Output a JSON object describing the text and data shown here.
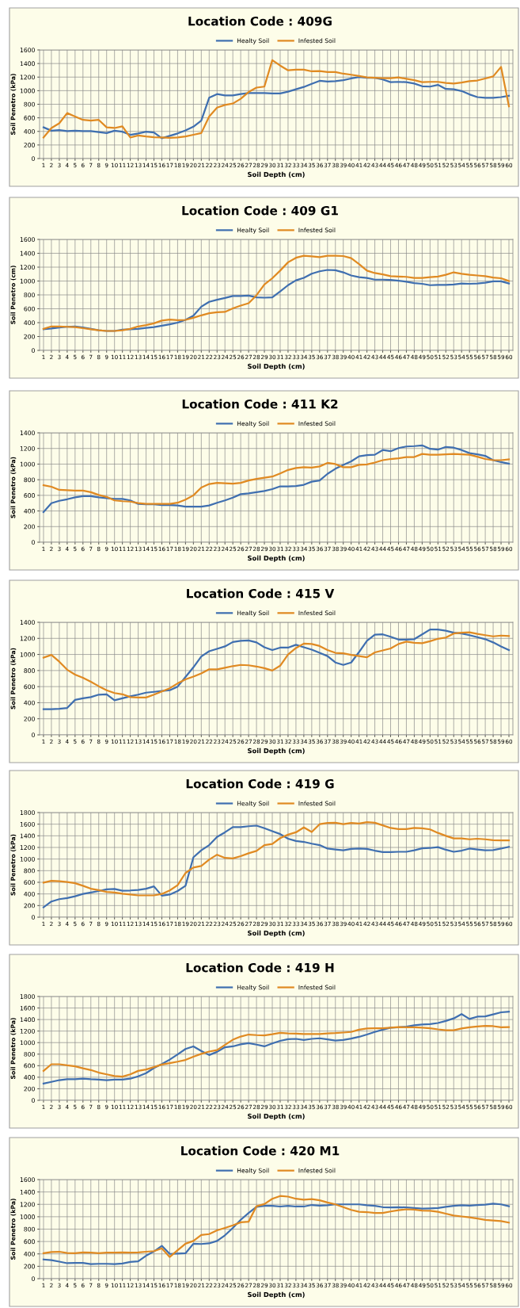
{
  "chart_data": [
    {
      "type": "line",
      "title": "Location Code : 409G",
      "xlabel": "Soil Depth (cm)",
      "ylabel": "Soil Penetro (kPa)",
      "categories": [
        "1",
        "2",
        "3",
        "4",
        "5",
        "6",
        "7",
        "8",
        "9",
        "10",
        "11",
        "12",
        "13",
        "14",
        "15",
        "16",
        "17",
        "18",
        "19",
        "20",
        "21",
        "22",
        "23",
        "24",
        "25",
        "26",
        "27",
        "28",
        "29",
        "30",
        "31",
        "32",
        "33",
        "34",
        "35",
        "36",
        "37",
        "38",
        "39",
        "40",
        "41",
        "42",
        "43",
        "44",
        "45",
        "46",
        "47",
        "48",
        "49",
        "50",
        "51",
        "52",
        "53",
        "54",
        "55",
        "56",
        "57",
        "58",
        "59",
        "60"
      ],
      "ylim": [
        0,
        1600
      ],
      "yticks": [
        0,
        200,
        400,
        600,
        800,
        1000,
        1200,
        1400,
        1600
      ],
      "grid": true,
      "legend": "top",
      "series": [
        {
          "name": "Healty Soil",
          "color": "#3f6fb0",
          "values": [
            460,
            410,
            420,
            405,
            410,
            405,
            405,
            390,
            375,
            410,
            395,
            350,
            370,
            395,
            385,
            300,
            335,
            370,
            415,
            470,
            560,
            895,
            950,
            930,
            930,
            950,
            965,
            965,
            965,
            960,
            960,
            985,
            1020,
            1055,
            1100,
            1145,
            1135,
            1140,
            1155,
            1180,
            1200,
            1190,
            1190,
            1165,
            1125,
            1130,
            1125,
            1105,
            1065,
            1060,
            1085,
            1025,
            1020,
            995,
            945,
            905,
            895,
            895,
            905,
            925
          ]
        },
        {
          "name": "Infested Soil",
          "color": "#e08a22",
          "values": [
            310,
            450,
            520,
            670,
            620,
            570,
            560,
            570,
            460,
            450,
            475,
            310,
            340,
            325,
            315,
            310,
            305,
            310,
            325,
            350,
            375,
            620,
            750,
            790,
            810,
            880,
            980,
            1045,
            1060,
            1450,
            1370,
            1300,
            1310,
            1310,
            1285,
            1290,
            1275,
            1275,
            1250,
            1235,
            1215,
            1195,
            1190,
            1185,
            1185,
            1195,
            1175,
            1155,
            1125,
            1130,
            1130,
            1115,
            1105,
            1120,
            1140,
            1150,
            1180,
            1210,
            1350,
            770
          ]
        }
      ]
    },
    {
      "type": "line",
      "title": "Location Code : 409 G1",
      "xlabel": "Soil Depth (cm)",
      "ylabel": "Soil Penetro (cm)",
      "categories": [
        "1",
        "2",
        "3",
        "4",
        "5",
        "6",
        "7",
        "8",
        "9",
        "10",
        "11",
        "12",
        "13",
        "14",
        "15",
        "16",
        "17",
        "18",
        "19",
        "20",
        "21",
        "22",
        "23",
        "24",
        "25",
        "26",
        "27",
        "28",
        "29",
        "30",
        "31",
        "32",
        "33",
        "34",
        "35",
        "36",
        "37",
        "38",
        "39",
        "40",
        "41",
        "42",
        "43",
        "44",
        "45",
        "46",
        "47",
        "48",
        "49",
        "50",
        "51",
        "52",
        "53",
        "54",
        "55",
        "56",
        "57",
        "58",
        "59",
        "60"
      ],
      "ylim": [
        0,
        1600
      ],
      "yticks": [
        0,
        200,
        400,
        600,
        800,
        1000,
        1200,
        1400,
        1600
      ],
      "grid": true,
      "legend": "top",
      "series": [
        {
          "name": "Healty Soil",
          "color": "#3f6fb0",
          "values": [
            305,
            315,
            330,
            340,
            345,
            330,
            310,
            290,
            280,
            280,
            300,
            305,
            310,
            325,
            335,
            355,
            375,
            400,
            440,
            500,
            630,
            700,
            730,
            755,
            785,
            785,
            790,
            765,
            760,
            765,
            850,
            940,
            1010,
            1045,
            1105,
            1140,
            1160,
            1155,
            1125,
            1080,
            1055,
            1045,
            1020,
            1020,
            1015,
            1005,
            990,
            970,
            960,
            940,
            945,
            945,
            950,
            965,
            960,
            965,
            975,
            995,
            995,
            965
          ]
        },
        {
          "name": "Infested Soil",
          "color": "#e08a22",
          "values": [
            310,
            345,
            345,
            340,
            335,
            320,
            305,
            290,
            280,
            280,
            290,
            310,
            345,
            365,
            390,
            430,
            445,
            435,
            440,
            470,
            505,
            535,
            550,
            555,
            605,
            645,
            680,
            795,
            950,
            1040,
            1150,
            1270,
            1335,
            1365,
            1355,
            1345,
            1365,
            1365,
            1360,
            1330,
            1245,
            1150,
            1115,
            1095,
            1070,
            1065,
            1060,
            1045,
            1045,
            1055,
            1065,
            1090,
            1125,
            1105,
            1090,
            1080,
            1070,
            1050,
            1040,
            1000
          ]
        }
      ]
    },
    {
      "type": "line",
      "title": "Location Code : 411 K2",
      "xlabel": "Soil Depth (cm)",
      "ylabel": "Soil Penetro (kPa)",
      "categories": [
        "1",
        "2",
        "3",
        "4",
        "5",
        "6",
        "7",
        "8",
        "9",
        "10",
        "11",
        "12",
        "13",
        "14",
        "15",
        "16",
        "17",
        "18",
        "19",
        "20",
        "21",
        "22",
        "23",
        "24",
        "25",
        "26",
        "27",
        "28",
        "29",
        "30",
        "31",
        "32",
        "33",
        "34",
        "35",
        "36",
        "37",
        "38",
        "39",
        "40",
        "41",
        "42",
        "43",
        "44",
        "45",
        "46",
        "47",
        "48",
        "49",
        "50",
        "51",
        "52",
        "53",
        "54",
        "55",
        "56",
        "57",
        "58",
        "59",
        "60"
      ],
      "ylim": [
        0,
        1400
      ],
      "yticks": [
        0,
        200,
        400,
        600,
        800,
        1000,
        1200,
        1400
      ],
      "grid": true,
      "legend": "top",
      "series": [
        {
          "name": "Healty Soil",
          "color": "#3f6fb0",
          "values": [
            385,
            500,
            530,
            550,
            575,
            590,
            590,
            575,
            565,
            555,
            555,
            535,
            490,
            485,
            485,
            475,
            475,
            470,
            455,
            455,
            455,
            470,
            505,
            535,
            570,
            615,
            625,
            640,
            655,
            680,
            715,
            715,
            720,
            735,
            775,
            790,
            875,
            940,
            990,
            1035,
            1100,
            1115,
            1120,
            1180,
            1165,
            1205,
            1225,
            1230,
            1240,
            1195,
            1185,
            1220,
            1210,
            1180,
            1140,
            1125,
            1105,
            1050,
            1025,
            1005
          ]
        },
        {
          "name": "Infested Soil",
          "color": "#e08a22",
          "values": [
            730,
            710,
            670,
            665,
            660,
            660,
            640,
            605,
            580,
            535,
            525,
            520,
            500,
            490,
            490,
            490,
            490,
            505,
            545,
            600,
            700,
            745,
            760,
            755,
            750,
            760,
            790,
            810,
            825,
            840,
            880,
            925,
            950,
            960,
            955,
            970,
            1015,
            1000,
            960,
            960,
            990,
            995,
            1020,
            1050,
            1065,
            1075,
            1090,
            1090,
            1130,
            1120,
            1120,
            1125,
            1130,
            1125,
            1120,
            1095,
            1065,
            1050,
            1050,
            1060
          ]
        }
      ]
    },
    {
      "type": "line",
      "title": "Location Code : 415 V",
      "xlabel": "Soil Depth (cm)",
      "ylabel": "Soil Penetro (kPa)",
      "categories": [
        "1",
        "2",
        "3",
        "4",
        "5",
        "6",
        "7",
        "8",
        "9",
        "10",
        "11",
        "12",
        "13",
        "14",
        "15",
        "16",
        "17",
        "18",
        "19",
        "20",
        "21",
        "22",
        "23",
        "24",
        "25",
        "26",
        "27",
        "28",
        "29",
        "30",
        "31",
        "32",
        "33",
        "34",
        "35",
        "36",
        "37",
        "38",
        "39",
        "40",
        "41",
        "42",
        "43",
        "44",
        "45",
        "46",
        "47",
        "48",
        "49",
        "50",
        "51",
        "52",
        "53",
        "54",
        "55",
        "56",
        "57",
        "58",
        "59",
        "60"
      ],
      "ylim": [
        0,
        1400
      ],
      "yticks": [
        0,
        200,
        400,
        600,
        800,
        1000,
        1200,
        1400
      ],
      "grid": true,
      "legend": "top",
      "series": [
        {
          "name": "Healty Soil",
          "color": "#3f6fb0",
          "values": [
            320,
            320,
            325,
            335,
            435,
            455,
            470,
            500,
            505,
            430,
            455,
            480,
            500,
            525,
            535,
            545,
            555,
            600,
            720,
            840,
            975,
            1040,
            1070,
            1100,
            1155,
            1170,
            1175,
            1150,
            1090,
            1055,
            1085,
            1085,
            1120,
            1090,
            1060,
            1020,
            980,
            900,
            870,
            900,
            1030,
            1170,
            1245,
            1250,
            1220,
            1185,
            1185,
            1190,
            1250,
            1310,
            1310,
            1295,
            1270,
            1260,
            1240,
            1215,
            1190,
            1150,
            1100,
            1055
          ]
        },
        {
          "name": "Infested Soil",
          "color": "#e08a22",
          "values": [
            960,
            995,
            910,
            810,
            750,
            710,
            660,
            605,
            555,
            520,
            505,
            470,
            465,
            465,
            500,
            540,
            580,
            640,
            690,
            725,
            765,
            815,
            815,
            835,
            855,
            870,
            865,
            850,
            830,
            800,
            860,
            1000,
            1080,
            1135,
            1130,
            1105,
            1055,
            1020,
            1015,
            995,
            980,
            965,
            1025,
            1050,
            1075,
            1130,
            1160,
            1145,
            1140,
            1165,
            1195,
            1210,
            1260,
            1270,
            1275,
            1255,
            1240,
            1225,
            1235,
            1230
          ]
        }
      ]
    },
    {
      "type": "line",
      "title": "Location Code : 419 G",
      "xlabel": "Soil Depth (cm)",
      "ylabel": "Soil Penetro (kPa)",
      "categories": [
        "1",
        "2",
        "3",
        "4",
        "5",
        "6",
        "7",
        "8",
        "9",
        "10",
        "11",
        "12",
        "13",
        "14",
        "15",
        "16",
        "17",
        "18",
        "19",
        "20",
        "21",
        "22",
        "23",
        "24",
        "25",
        "26",
        "27",
        "28",
        "29",
        "30",
        "31",
        "32",
        "33",
        "34",
        "35",
        "36",
        "37",
        "38",
        "39",
        "40",
        "41",
        "42",
        "43",
        "44",
        "45",
        "46",
        "47",
        "48",
        "49",
        "50",
        "51",
        "52",
        "53",
        "54",
        "55",
        "56",
        "57",
        "58",
        "59",
        "60"
      ],
      "ylim": [
        0,
        1800
      ],
      "yticks": [
        0,
        200,
        400,
        600,
        800,
        1000,
        1200,
        1400,
        1600,
        1800
      ],
      "grid": true,
      "legend": "top",
      "series": [
        {
          "name": "Healty Soil",
          "color": "#3f6fb0",
          "values": [
            170,
            270,
            310,
            330,
            360,
            400,
            425,
            450,
            480,
            485,
            455,
            460,
            470,
            490,
            530,
            370,
            390,
            450,
            540,
            1030,
            1150,
            1240,
            1380,
            1460,
            1550,
            1550,
            1565,
            1575,
            1530,
            1480,
            1430,
            1350,
            1310,
            1295,
            1265,
            1240,
            1180,
            1165,
            1150,
            1175,
            1180,
            1175,
            1145,
            1120,
            1120,
            1125,
            1125,
            1150,
            1185,
            1190,
            1205,
            1160,
            1125,
            1145,
            1180,
            1165,
            1150,
            1155,
            1180,
            1210
          ]
        },
        {
          "name": "Infested Soil",
          "color": "#e08a22",
          "values": [
            595,
            625,
            620,
            605,
            585,
            540,
            490,
            465,
            435,
            425,
            405,
            390,
            375,
            375,
            375,
            400,
            460,
            550,
            760,
            855,
            880,
            990,
            1075,
            1020,
            1010,
            1050,
            1100,
            1140,
            1240,
            1260,
            1360,
            1420,
            1460,
            1545,
            1465,
            1600,
            1620,
            1625,
            1600,
            1620,
            1610,
            1635,
            1625,
            1580,
            1535,
            1515,
            1515,
            1535,
            1530,
            1510,
            1450,
            1400,
            1355,
            1355,
            1340,
            1350,
            1340,
            1325,
            1320,
            1320
          ]
        }
      ]
    },
    {
      "type": "line",
      "title": "Location Code : 419 H",
      "xlabel": "Soil Depth (cm)",
      "ylabel": "Soil Penetro (kPa)",
      "categories": [
        "1",
        "2",
        "3",
        "4",
        "5",
        "6",
        "7",
        "8",
        "9",
        "10",
        "11",
        "12",
        "13",
        "14",
        "15",
        "16",
        "17",
        "18",
        "19",
        "20",
        "21",
        "22",
        "23",
        "24",
        "25",
        "26",
        "27",
        "28",
        "29",
        "30",
        "31",
        "32",
        "33",
        "34",
        "35",
        "36",
        "37",
        "38",
        "39",
        "40",
        "41",
        "42",
        "43",
        "44",
        "45",
        "46",
        "47",
        "48",
        "49",
        "50",
        "51",
        "52",
        "53",
        "54",
        "55",
        "56",
        "57",
        "58",
        "59",
        "60"
      ],
      "ylim": [
        0,
        1800
      ],
      "yticks": [
        0,
        200,
        400,
        600,
        800,
        1000,
        1200,
        1400,
        1600,
        1800
      ],
      "grid": true,
      "legend": "top",
      "series": [
        {
          "name": "Healty Soil",
          "color": "#3f6fb0",
          "values": [
            290,
            320,
            350,
            365,
            365,
            375,
            365,
            360,
            350,
            360,
            360,
            375,
            415,
            470,
            560,
            630,
            705,
            795,
            890,
            935,
            855,
            785,
            840,
            920,
            935,
            970,
            990,
            965,
            935,
            985,
            1030,
            1060,
            1065,
            1045,
            1065,
            1075,
            1055,
            1035,
            1045,
            1070,
            1100,
            1140,
            1185,
            1225,
            1260,
            1265,
            1275,
            1300,
            1315,
            1320,
            1340,
            1375,
            1420,
            1495,
            1410,
            1450,
            1455,
            1490,
            1525,
            1535
          ]
        },
        {
          "name": "Infested Soil",
          "color": "#e08a22",
          "values": [
            510,
            625,
            625,
            605,
            590,
            555,
            525,
            480,
            450,
            420,
            410,
            450,
            510,
            535,
            575,
            620,
            645,
            670,
            700,
            755,
            805,
            845,
            870,
            960,
            1050,
            1105,
            1140,
            1130,
            1125,
            1145,
            1170,
            1160,
            1155,
            1150,
            1150,
            1150,
            1160,
            1165,
            1175,
            1185,
            1225,
            1245,
            1250,
            1250,
            1260,
            1270,
            1265,
            1265,
            1260,
            1250,
            1230,
            1215,
            1215,
            1245,
            1265,
            1280,
            1290,
            1285,
            1265,
            1270
          ]
        }
      ]
    },
    {
      "type": "line",
      "title": "Location Code : 420 M1",
      "xlabel": "Soil Depth (cm)",
      "ylabel": "Soil Penetro (kPa)",
      "categories": [
        "1",
        "2",
        "3",
        "4",
        "5",
        "6",
        "7",
        "8",
        "9",
        "10",
        "11",
        "12",
        "13",
        "14",
        "15",
        "16",
        "17",
        "18",
        "19",
        "20",
        "21",
        "22",
        "23",
        "24",
        "25",
        "26",
        "27",
        "28",
        "29",
        "30",
        "31",
        "32",
        "33",
        "34",
        "35",
        "36",
        "37",
        "38",
        "39",
        "40",
        "41",
        "42",
        "43",
        "44",
        "45",
        "46",
        "47",
        "48",
        "49",
        "50",
        "51",
        "52",
        "53",
        "54",
        "55",
        "56",
        "57",
        "58",
        "59",
        "60"
      ],
      "ylim": [
        0,
        1600
      ],
      "yticks": [
        0,
        200,
        400,
        600,
        800,
        1000,
        1200,
        1400,
        1600
      ],
      "grid": true,
      "legend": "top",
      "series": [
        {
          "name": "Healty Soil",
          "color": "#3f6fb0",
          "values": [
            310,
            300,
            275,
            250,
            255,
            255,
            235,
            240,
            240,
            235,
            245,
            270,
            280,
            370,
            440,
            530,
            400,
            405,
            410,
            565,
            560,
            570,
            610,
            700,
            820,
            950,
            1060,
            1160,
            1175,
            1175,
            1165,
            1175,
            1165,
            1165,
            1190,
            1180,
            1185,
            1200,
            1200,
            1200,
            1200,
            1185,
            1175,
            1155,
            1150,
            1155,
            1150,
            1140,
            1130,
            1135,
            1140,
            1160,
            1175,
            1185,
            1180,
            1190,
            1195,
            1210,
            1200,
            1170
          ]
        },
        {
          "name": "Infested Soil",
          "color": "#e08a22",
          "values": [
            410,
            430,
            435,
            415,
            410,
            425,
            420,
            410,
            420,
            420,
            425,
            420,
            425,
            435,
            445,
            490,
            350,
            460,
            565,
            610,
            705,
            720,
            780,
            820,
            860,
            910,
            920,
            1170,
            1205,
            1290,
            1335,
            1325,
            1290,
            1275,
            1285,
            1265,
            1230,
            1200,
            1155,
            1110,
            1080,
            1075,
            1060,
            1060,
            1085,
            1105,
            1120,
            1115,
            1100,
            1095,
            1080,
            1050,
            1020,
            1005,
            990,
            970,
            950,
            940,
            930,
            905
          ]
        }
      ]
    }
  ]
}
